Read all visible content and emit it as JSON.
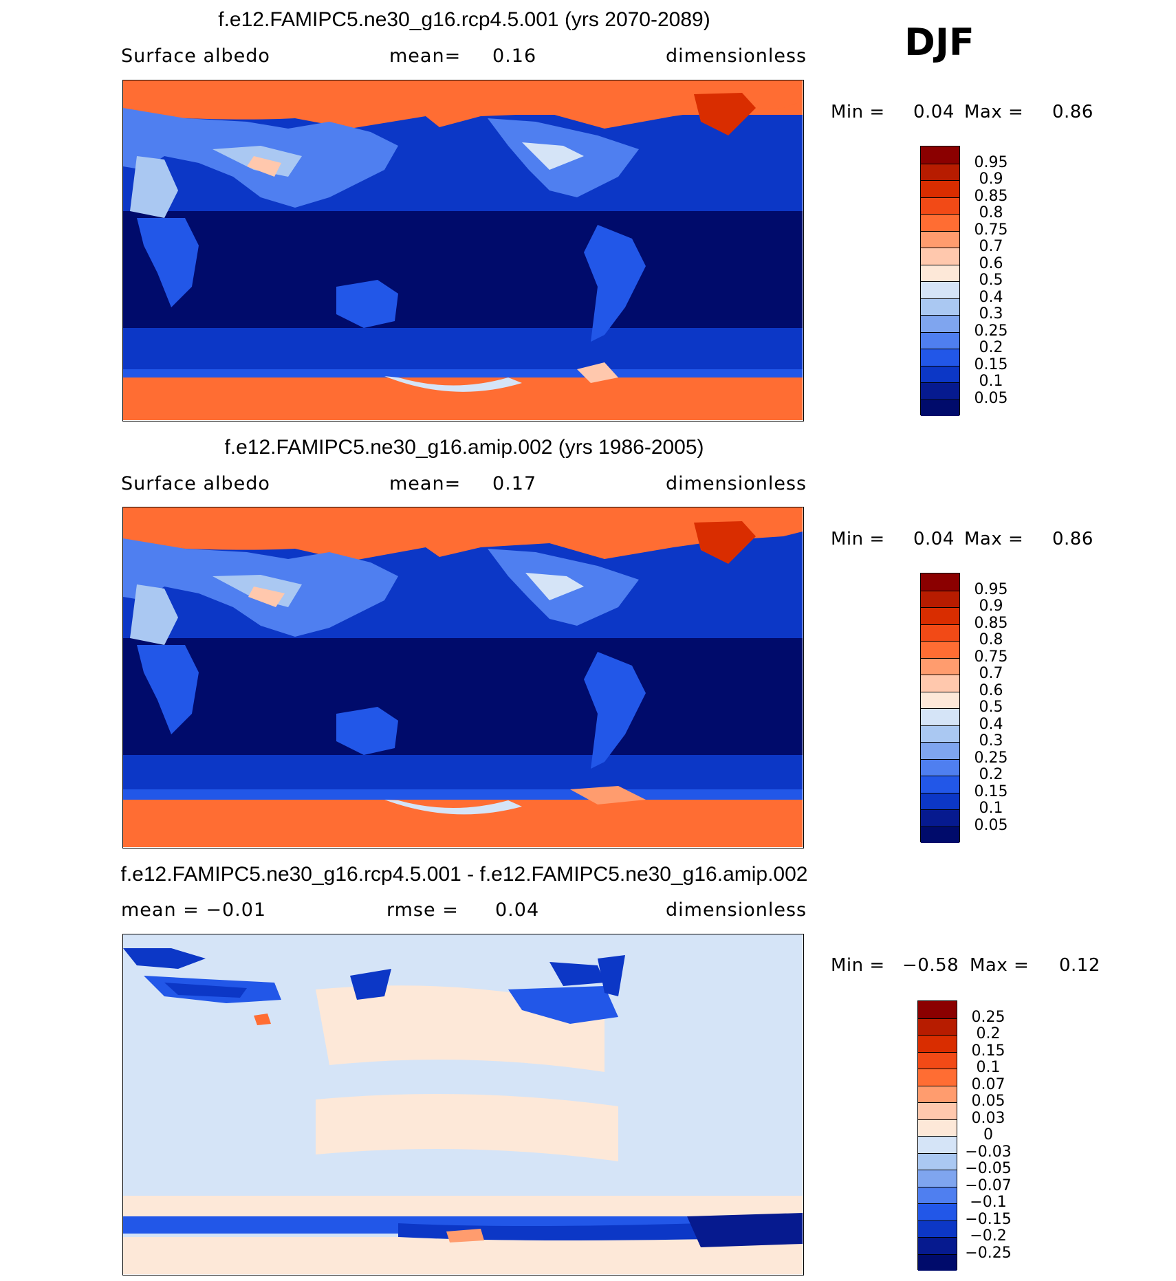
{
  "season": "DJF",
  "panels": [
    {
      "id": "rcp",
      "title": "f.e12.FAMIPC5.ne30_g16.rcp4.5.001 (yrs 2070-2089)",
      "sub_left": "Surface albedo",
      "sub_mid_label": "mean=",
      "sub_mid_value": "0.16",
      "sub_right": "dimensionless",
      "min_label": "Min =",
      "min_value": "0.04",
      "max_label": "Max =",
      "max_value": "0.86",
      "colorbar": {
        "labels": [
          "0.95",
          "0.9",
          "0.85",
          "0.8",
          "0.75",
          "0.7",
          "0.6",
          "0.5",
          "0.4",
          "0.3",
          "0.25",
          "0.2",
          "0.15",
          "0.1",
          "0.05"
        ],
        "colors": [
          "#8b0000",
          "#b71c00",
          "#d92d00",
          "#f24a16",
          "#ff6d33",
          "#ff9c6e",
          "#ffc8ad",
          "#fde8d8",
          "#d5e4f7",
          "#aac8f2",
          "#7fa5ef",
          "#4f7ff0",
          "#2257e8",
          "#0c37c6",
          "#061a8f",
          "#000b6b"
        ]
      }
    },
    {
      "id": "amip",
      "title": "f.e12.FAMIPC5.ne30_g16.amip.002 (yrs 1986-2005)",
      "sub_left": "Surface albedo",
      "sub_mid_label": "mean=",
      "sub_mid_value": "0.17",
      "sub_right": "dimensionless",
      "min_label": "Min =",
      "min_value": "0.04",
      "max_label": "Max =",
      "max_value": "0.86",
      "colorbar": {
        "labels": [
          "0.95",
          "0.9",
          "0.85",
          "0.8",
          "0.75",
          "0.7",
          "0.6",
          "0.5",
          "0.4",
          "0.3",
          "0.25",
          "0.2",
          "0.15",
          "0.1",
          "0.05"
        ],
        "colors": [
          "#8b0000",
          "#b71c00",
          "#d92d00",
          "#f24a16",
          "#ff6d33",
          "#ff9c6e",
          "#ffc8ad",
          "#fde8d8",
          "#d5e4f7",
          "#aac8f2",
          "#7fa5ef",
          "#4f7ff0",
          "#2257e8",
          "#0c37c6",
          "#061a8f",
          "#000b6b"
        ]
      }
    },
    {
      "id": "diff",
      "title": "f.e12.FAMIPC5.ne30_g16.rcp4.5.001 - f.e12.FAMIPC5.ne30_g16.amip.002",
      "sub_left": "mean = −0.01",
      "sub_mid_label": "rmse =",
      "sub_mid_value": "0.04",
      "sub_right": "dimensionless",
      "min_label": "Min =",
      "min_value": "−0.58",
      "max_label": "Max =",
      "max_value": "0.12",
      "colorbar": {
        "labels": [
          "0.25",
          "0.2",
          "0.15",
          "0.1",
          "0.07",
          "0.05",
          "0.03",
          "0",
          "−0.03",
          "−0.05",
          "−0.07",
          "−0.1",
          "−0.15",
          "−0.2",
          "−0.25"
        ],
        "colors": [
          "#8b0000",
          "#b71c00",
          "#d92d00",
          "#f24a16",
          "#ff6d33",
          "#ff9c6e",
          "#ffc8ad",
          "#fde8d8",
          "#d5e4f7",
          "#aac8f2",
          "#7fa5ef",
          "#4f7ff0",
          "#2257e8",
          "#0c37c6",
          "#061a8f",
          "#000b6b"
        ]
      }
    }
  ]
}
